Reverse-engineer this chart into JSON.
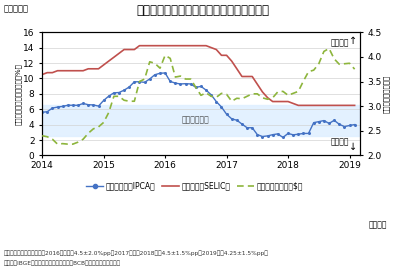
{
  "title": "インフレ率と政策金利・為替レートの推移",
  "fig_label": "（図表２）",
  "ylabel_left": "（前年同月比、金利水準、%）",
  "ylabel_right": "（レアル／米ドル）",
  "xlabel": "（月次）",
  "note1": "（注意）インフレ目標は、2016年以前は4.5±2.0%pp、2017年及び2018年は4.5±1.5%pp、2019年は4.25±1.5%pp。",
  "note2": "（出所）IBGE（ブラジル地理統計院）・BCB（ブラジル中央銀行）",
  "xlim": [
    2014.0,
    2019.17
  ],
  "ylim_left": [
    0.0,
    16.0
  ],
  "ylim_right": [
    2.0,
    4.5
  ],
  "yticks_left": [
    0.0,
    2.0,
    4.0,
    6.0,
    8.0,
    10.0,
    12.0,
    14.0,
    16.0
  ],
  "yticks_right": [
    2.0,
    2.5,
    3.0,
    3.5,
    4.0,
    4.5
  ],
  "xticks": [
    2014,
    2015,
    2016,
    2017,
    2018,
    2019
  ],
  "annotation_inflation_target": "インフレ目標",
  "annotation_real_weak": "レアル安",
  "annotation_real_strong": "レアル高",
  "inflation_target_band_upper": 6.5,
  "inflation_target_band_lower": 2.5,
  "legend_labels": [
    "インフレ率（IPCA）",
    "政策金利（SELIC）",
    "為替レート（対米$）"
  ],
  "colors": {
    "inflation": "#4472C4",
    "policy_rate": "#C0504D",
    "exchange": "#8DB53C",
    "target_band": "#DDEEFF"
  },
  "inflation_dates": [
    2014.0,
    2014.083,
    2014.167,
    2014.25,
    2014.333,
    2014.417,
    2014.5,
    2014.583,
    2014.667,
    2014.75,
    2014.833,
    2014.917,
    2015.0,
    2015.083,
    2015.167,
    2015.25,
    2015.333,
    2015.417,
    2015.5,
    2015.583,
    2015.667,
    2015.75,
    2015.833,
    2015.917,
    2016.0,
    2016.083,
    2016.167,
    2016.25,
    2016.333,
    2016.417,
    2016.5,
    2016.583,
    2016.667,
    2016.75,
    2016.833,
    2016.917,
    2017.0,
    2017.083,
    2017.167,
    2017.25,
    2017.333,
    2017.417,
    2017.5,
    2017.583,
    2017.667,
    2017.75,
    2017.833,
    2017.917,
    2018.0,
    2018.083,
    2018.167,
    2018.25,
    2018.333,
    2018.417,
    2018.5,
    2018.583,
    2018.667,
    2018.75,
    2018.833,
    2018.917,
    2019.0,
    2019.083
  ],
  "inflation_values": [
    5.6,
    5.68,
    6.15,
    6.28,
    6.37,
    6.52,
    6.52,
    6.51,
    6.75,
    6.59,
    6.56,
    6.41,
    7.14,
    7.7,
    8.13,
    8.17,
    8.47,
    8.89,
    9.56,
    9.57,
    9.49,
    9.93,
    10.48,
    10.67,
    10.71,
    9.61,
    9.39,
    9.28,
    9.32,
    9.28,
    8.84,
    8.97,
    8.48,
    7.87,
    6.99,
    6.29,
    5.35,
    4.76,
    4.57,
    4.08,
    3.6,
    3.6,
    2.71,
    2.46,
    2.54,
    2.7,
    2.8,
    2.34,
    2.86,
    2.68,
    2.76,
    2.86,
    2.86,
    4.26,
    4.39,
    4.53,
    4.16,
    4.56,
    4.05,
    3.75,
    3.89,
    4.01
  ],
  "policy_rate_dates": [
    2014.0,
    2014.083,
    2014.167,
    2014.25,
    2014.333,
    2014.417,
    2014.5,
    2014.583,
    2014.667,
    2014.75,
    2014.833,
    2014.917,
    2015.0,
    2015.083,
    2015.167,
    2015.25,
    2015.333,
    2015.417,
    2015.5,
    2015.583,
    2015.667,
    2015.75,
    2015.833,
    2015.917,
    2016.0,
    2016.083,
    2016.167,
    2016.25,
    2016.333,
    2016.417,
    2016.5,
    2016.583,
    2016.667,
    2016.75,
    2016.833,
    2016.917,
    2017.0,
    2017.083,
    2017.167,
    2017.25,
    2017.333,
    2017.417,
    2017.5,
    2017.583,
    2017.667,
    2017.75,
    2017.833,
    2017.917,
    2018.0,
    2018.083,
    2018.167,
    2018.25,
    2018.333,
    2018.417,
    2018.5,
    2018.583,
    2018.667,
    2018.75,
    2018.833,
    2018.917,
    2019.0,
    2019.083
  ],
  "policy_rate_values": [
    10.5,
    10.75,
    10.75,
    11.0,
    11.0,
    11.0,
    11.0,
    11.0,
    11.0,
    11.25,
    11.25,
    11.25,
    11.75,
    12.25,
    12.75,
    13.25,
    13.75,
    13.75,
    13.75,
    14.25,
    14.25,
    14.25,
    14.25,
    14.25,
    14.25,
    14.25,
    14.25,
    14.25,
    14.25,
    14.25,
    14.25,
    14.25,
    14.25,
    14.0,
    13.75,
    13.0,
    13.0,
    12.25,
    11.25,
    10.25,
    10.25,
    10.25,
    9.25,
    8.25,
    7.5,
    7.0,
    7.0,
    7.0,
    7.0,
    6.75,
    6.5,
    6.5,
    6.5,
    6.5,
    6.5,
    6.5,
    6.5,
    6.5,
    6.5,
    6.5,
    6.5,
    6.5
  ],
  "exchange_dates": [
    2014.0,
    2014.083,
    2014.167,
    2014.25,
    2014.333,
    2014.417,
    2014.5,
    2014.583,
    2014.667,
    2014.75,
    2014.833,
    2014.917,
    2015.0,
    2015.083,
    2015.167,
    2015.25,
    2015.333,
    2015.417,
    2015.5,
    2015.583,
    2015.667,
    2015.75,
    2015.833,
    2015.917,
    2016.0,
    2016.083,
    2016.167,
    2016.25,
    2016.333,
    2016.417,
    2016.5,
    2016.583,
    2016.667,
    2016.75,
    2016.833,
    2016.917,
    2017.0,
    2017.083,
    2017.167,
    2017.25,
    2017.333,
    2017.417,
    2017.5,
    2017.583,
    2017.667,
    2017.75,
    2017.833,
    2017.917,
    2018.0,
    2018.083,
    2018.167,
    2018.25,
    2018.333,
    2018.417,
    2018.5,
    2018.583,
    2018.667,
    2018.75,
    2018.833,
    2018.917,
    2019.0,
    2019.083
  ],
  "exchange_values": [
    2.4,
    2.38,
    2.33,
    2.23,
    2.24,
    2.23,
    2.23,
    2.27,
    2.33,
    2.45,
    2.54,
    2.58,
    2.67,
    2.87,
    3.2,
    3.2,
    3.12,
    3.1,
    3.1,
    3.5,
    3.55,
    3.9,
    3.87,
    3.77,
    4.03,
    3.97,
    3.59,
    3.61,
    3.55,
    3.55,
    3.38,
    3.22,
    3.27,
    3.2,
    3.18,
    3.26,
    3.24,
    3.1,
    3.16,
    3.15,
    3.2,
    3.25,
    3.25,
    3.17,
    3.14,
    3.17,
    3.29,
    3.3,
    3.22,
    3.26,
    3.3,
    3.51,
    3.7,
    3.73,
    3.86,
    4.11,
    4.17,
    3.96,
    3.85,
    3.86,
    3.87,
    3.75
  ]
}
